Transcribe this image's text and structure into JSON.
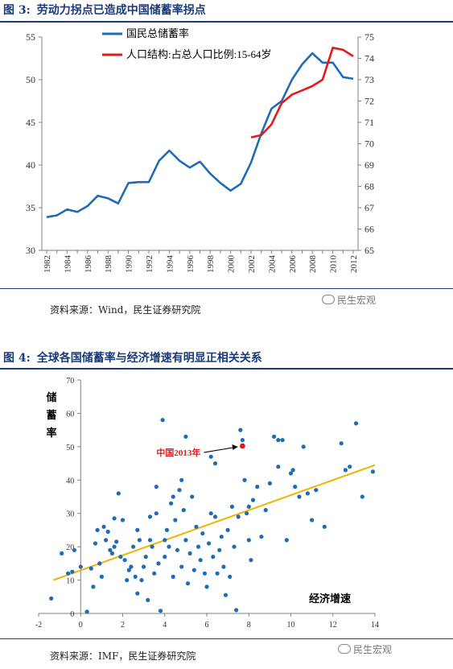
{
  "figure3": {
    "number": "图 3:",
    "title": "劳动力拐点已造成中国储蓄率拐点",
    "source": "资料来源：Wind，民生证券研究院",
    "watermark": "民生宏观"
  },
  "figure4": {
    "number": "图 4:",
    "title": "全球各国储蓄率与经济增速有明显正相关关系",
    "source": "资料来源：IMF，民生证券研究院",
    "watermark": "民生宏观"
  },
  "colors": {
    "heading": "#1a3a78",
    "savings_line": "#1f6bb5",
    "population_line": "#e31a1c",
    "scatter_point": "#1f6bb5",
    "trend_line": "#f0b400",
    "china_point": "#e31a1c"
  },
  "chart_data": [
    {
      "type": "line",
      "title": "",
      "x": [
        1982,
        1983,
        1984,
        1985,
        1986,
        1987,
        1988,
        1989,
        1990,
        1991,
        1992,
        1993,
        1994,
        1995,
        1996,
        1997,
        1998,
        1999,
        2000,
        2001,
        2002,
        2003,
        2004,
        2005,
        2006,
        2007,
        2008,
        2009,
        2010,
        2011,
        2012
      ],
      "xticks": [
        "1982",
        "1984",
        "1986",
        "1988",
        "1990",
        "1992",
        "1994",
        "1996",
        "1998",
        "2000",
        "2002",
        "2004",
        "2006",
        "2008",
        "2010",
        "2012"
      ],
      "ylim": [
        30,
        55
      ],
      "yticks": [
        "30",
        "35",
        "40",
        "45",
        "50",
        "55"
      ],
      "y2lim": [
        65,
        75
      ],
      "y2ticks": [
        "65",
        "66",
        "67",
        "68",
        "69",
        "70",
        "71",
        "72",
        "73",
        "74",
        "75"
      ],
      "legend_position": "top-left",
      "series": [
        {
          "name": "国民总储蓄率",
          "axis": "left",
          "values": [
            33.9,
            34.1,
            34.8,
            34.5,
            35.2,
            36.4,
            36.1,
            35.5,
            37.9,
            38.0,
            38.0,
            40.5,
            41.7,
            40.5,
            39.7,
            40.4,
            39.0,
            37.9,
            37.0,
            37.8,
            40.3,
            43.7,
            46.6,
            47.5,
            50.0,
            51.8,
            53.1,
            52.0,
            52.0,
            50.3,
            50.1
          ]
        },
        {
          "name": "人口结构:占总人口比例:15-64岁",
          "axis": "right",
          "x": [
            2002,
            2003,
            2004,
            2005,
            2006,
            2007,
            2008,
            2009,
            2010,
            2011,
            2012
          ],
          "values": [
            70.3,
            70.4,
            70.9,
            71.9,
            72.3,
            72.5,
            72.7,
            73.0,
            74.5,
            74.4,
            74.1
          ]
        }
      ]
    },
    {
      "type": "scatter",
      "title": "",
      "ylabel": "储蓄率",
      "xlabel": "经济增速",
      "xlim": [
        -2,
        14
      ],
      "ylim": [
        0,
        70
      ],
      "xticks": [
        "-2",
        "0",
        "2",
        "4",
        "6",
        "8",
        "10",
        "12",
        "14"
      ],
      "yticks": [
        "0",
        "10",
        "20",
        "30",
        "40",
        "50",
        "60",
        "70"
      ],
      "annotation": {
        "label": "中国2013年",
        "x": 7.7,
        "y": 50.2
      },
      "trend_line": {
        "x": [
          -1.3,
          14
        ],
        "y": [
          10,
          44.5
        ]
      },
      "points": [
        [
          -1.4,
          4.5
        ],
        [
          -0.9,
          18
        ],
        [
          -0.6,
          12
        ],
        [
          -0.4,
          12.5
        ],
        [
          -0.3,
          19
        ],
        [
          0.0,
          14
        ],
        [
          0.3,
          0.5
        ],
        [
          0.5,
          13.5
        ],
        [
          0.6,
          8
        ],
        [
          0.7,
          21
        ],
        [
          0.8,
          25
        ],
        [
          0.9,
          15
        ],
        [
          1.0,
          11
        ],
        [
          1.1,
          26
        ],
        [
          1.2,
          22
        ],
        [
          1.3,
          24.5
        ],
        [
          1.4,
          19
        ],
        [
          1.5,
          18
        ],
        [
          1.6,
          28.5
        ],
        [
          1.7,
          21.5
        ],
        [
          1.8,
          36
        ],
        [
          1.9,
          17
        ],
        [
          2.0,
          28
        ],
        [
          2.1,
          16
        ],
        [
          2.2,
          10
        ],
        [
          2.3,
          13
        ],
        [
          2.4,
          14
        ],
        [
          2.5,
          20
        ],
        [
          2.6,
          11
        ],
        [
          2.7,
          6
        ],
        [
          2.8,
          22
        ],
        [
          2.9,
          10
        ],
        [
          3.0,
          14
        ],
        [
          3.1,
          17
        ],
        [
          3.2,
          4
        ],
        [
          3.3,
          22
        ],
        [
          3.4,
          20
        ],
        [
          3.5,
          12
        ],
        [
          3.6,
          30
        ],
        [
          3.7,
          15
        ],
        [
          3.8,
          0.8
        ],
        [
          3.9,
          58
        ],
        [
          4.0,
          22
        ],
        [
          4.0,
          17
        ],
        [
          4.1,
          25
        ],
        [
          4.2,
          20
        ],
        [
          4.3,
          33
        ],
        [
          4.4,
          11
        ],
        [
          4.5,
          28
        ],
        [
          4.6,
          19
        ],
        [
          4.7,
          37
        ],
        [
          4.8,
          14
        ],
        [
          4.9,
          31
        ],
        [
          5.0,
          22
        ],
        [
          5.1,
          9
        ],
        [
          5.2,
          18
        ],
        [
          5.3,
          35
        ],
        [
          5.4,
          13
        ],
        [
          5.5,
          26
        ],
        [
          5.6,
          20
        ],
        [
          5.7,
          16
        ],
        [
          5.8,
          24
        ],
        [
          5.9,
          12
        ],
        [
          6.0,
          8
        ],
        [
          6.1,
          21
        ],
        [
          6.2,
          30
        ],
        [
          6.3,
          17
        ],
        [
          6.4,
          29
        ],
        [
          6.5,
          12
        ],
        [
          6.6,
          19
        ],
        [
          6.7,
          23
        ],
        [
          6.8,
          14
        ],
        [
          6.9,
          5.5
        ],
        [
          7.0,
          25
        ],
        [
          7.1,
          11
        ],
        [
          7.2,
          32
        ],
        [
          7.3,
          20
        ],
        [
          7.4,
          1
        ],
        [
          7.5,
          29
        ],
        [
          7.6,
          55
        ],
        [
          7.7,
          52
        ],
        [
          7.8,
          40
        ],
        [
          7.9,
          30
        ],
        [
          8.0,
          22
        ],
        [
          8.1,
          16
        ],
        [
          8.2,
          34
        ],
        [
          8.4,
          38
        ],
        [
          8.6,
          23
        ],
        [
          8.8,
          31
        ],
        [
          9.0,
          39
        ],
        [
          9.2,
          53
        ],
        [
          9.4,
          44
        ],
        [
          9.6,
          52
        ],
        [
          9.8,
          22
        ],
        [
          10.0,
          42
        ],
        [
          10.2,
          38
        ],
        [
          10.4,
          35
        ],
        [
          10.6,
          50
        ],
        [
          10.8,
          36
        ],
        [
          11.0,
          28
        ],
        [
          11.2,
          37
        ],
        [
          11.6,
          26
        ],
        [
          12.4,
          51
        ],
        [
          12.6,
          43
        ],
        [
          12.8,
          44
        ],
        [
          13.1,
          57
        ],
        [
          13.4,
          35
        ],
        [
          13.9,
          42.5
        ],
        [
          3.6,
          38
        ],
        [
          4.4,
          35
        ],
        [
          5.0,
          53
        ],
        [
          6.2,
          47
        ],
        [
          6.4,
          45
        ],
        [
          8.0,
          32
        ],
        [
          9.4,
          52
        ],
        [
          10.1,
          43
        ],
        [
          4.8,
          40
        ],
        [
          2.7,
          25
        ],
        [
          1.6,
          20
        ],
        [
          3.3,
          29
        ]
      ],
      "highlighted_point": {
        "x": 7.7,
        "y": 50.2
      }
    }
  ]
}
